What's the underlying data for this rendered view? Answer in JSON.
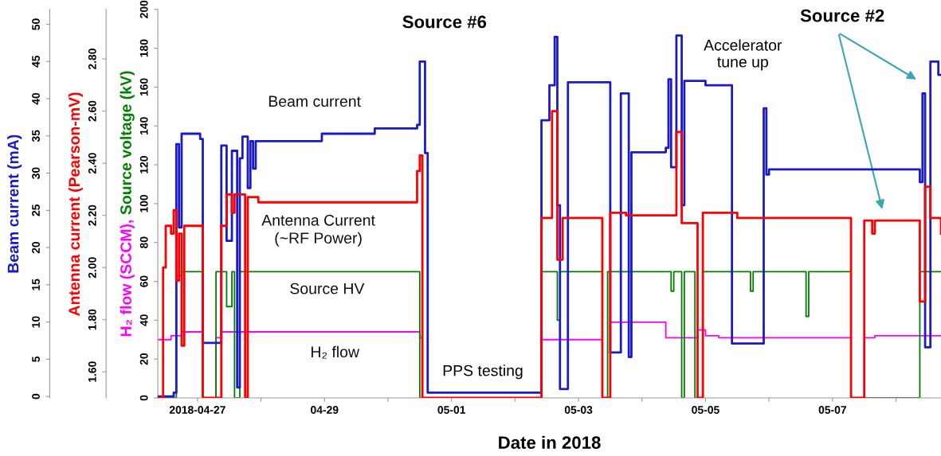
{
  "chart_data": {
    "type": "step",
    "xlabel": "Date in 2018",
    "ylabel": "H₂ flow (SCCM), Source voltage (kV)",
    "y3label": "Antenna current (Pearson-mV)",
    "y2label": "Beam current (mA)",
    "xlim": [
      "2018-04-26T09:00",
      "2018-05-08T17:00"
    ],
    "xticks": [
      {
        "value": "2018-04-27",
        "label": "2018-04-27"
      },
      {
        "value": "2018-04-28",
        "label": null
      },
      {
        "value": "2018-04-29",
        "label": "04-29"
      },
      {
        "value": "2018-04-30",
        "label": null
      },
      {
        "value": "2018-05-01",
        "label": "05-01"
      },
      {
        "value": "2018-05-02",
        "label": null
      },
      {
        "value": "2018-05-03",
        "label": "05-03"
      },
      {
        "value": "2018-05-04",
        "label": null
      },
      {
        "value": "2018-05-05",
        "label": "05-05"
      },
      {
        "value": "2018-05-06",
        "label": null
      },
      {
        "value": "2018-05-07",
        "label": "05-07"
      },
      {
        "value": "2018-05-08",
        "label": null
      }
    ],
    "ylim": [
      0,
      200
    ],
    "yticks": [
      0,
      20,
      40,
      60,
      80,
      100,
      120,
      140,
      160,
      180,
      200
    ],
    "y3lim": [
      1.5,
      2.99
    ],
    "y3ticks": [
      {
        "value": 1.6,
        "label": "1.60"
      },
      {
        "value": 1.8,
        "label": "1.80"
      },
      {
        "value": 2.0,
        "label": "2.00"
      },
      {
        "value": 2.2,
        "label": "2.20"
      },
      {
        "value": 2.4,
        "label": "2.40"
      },
      {
        "value": 2.6,
        "label": "2.60"
      },
      {
        "value": 2.8,
        "label": "2.80"
      }
    ],
    "y2lim": [
      -0.2,
      52
    ],
    "y2ticks": [
      0,
      5,
      10,
      15,
      20,
      25,
      30,
      35,
      40,
      45,
      50
    ],
    "annotations": [
      "Source #6",
      "Source #2",
      "Accelerator\ntune up",
      "PPS testing"
    ],
    "series": [
      {
        "name": "Beam current",
        "color": "#1a1ac8",
        "axis": "y2",
        "x": [
          "2018-04-26T09:00",
          "2018-04-26T15:00",
          "2018-04-26T16:00",
          "2018-04-26T17:00",
          "2018-04-26T18:00",
          "2018-04-27T01:00",
          "2018-04-27T02:00",
          "2018-04-27T09:00",
          "2018-04-27T11:00",
          "2018-04-27T13:00",
          "2018-04-27T15:00",
          "2018-04-27T16:00",
          "2018-04-27T17:00",
          "2018-04-27T19:00",
          "2018-04-27T20:00",
          "2018-04-27T21:00",
          "2018-04-27T22:00",
          "2018-04-28T23:00",
          "2018-04-29T19:00",
          "2018-04-30T11:00",
          "2018-04-30T12:00",
          "2018-04-30T14:00",
          "2018-04-30T15:00",
          "2018-05-02T10:00",
          "2018-05-02T13:00",
          "2018-05-02T15:00",
          "2018-05-02T16:00",
          "2018-05-02T17:00",
          "2018-05-02T20:00",
          "2018-05-03T12:00",
          "2018-05-03T16:00",
          "2018-05-03T19:00",
          "2018-05-03T20:00",
          "2018-05-04T09:00",
          "2018-05-04T10:00",
          "2018-05-04T11:00",
          "2018-05-04T13:00",
          "2018-05-04T15:00",
          "2018-05-04T16:00",
          "2018-05-05T00:00",
          "2018-05-05T10:00",
          "2018-05-05T22:00",
          "2018-05-05T23:00",
          "2018-05-06T00:00",
          "2018-05-08T09:00",
          "2018-05-08T10:00",
          "2018-05-08T11:00",
          "2018-05-08T13:00",
          "2018-05-08T16:00",
          "2018-05-08T17:00"
        ],
        "values": [
          0,
          0.5,
          33.9,
          22.7,
          35.3,
          34.6,
          7.2,
          33.7,
          20.9,
          33.0,
          1.2,
          32.0,
          34.9,
          28.0,
          34.3,
          30.6,
          34.3,
          35.3,
          36.0,
          36.5,
          45.0,
          32.7,
          0.5,
          37.1,
          41.8,
          48.3,
          25.7,
          1.0,
          42.2,
          5.9,
          40.7,
          5.3,
          32.8,
          33.4,
          42.6,
          30.8,
          48.5,
          25.7,
          42.4,
          41.8,
          7.1,
          38.7,
          29.8,
          30.5,
          28.8,
          40.7,
          6.6,
          45.0,
          43.2,
          43.2
        ]
      },
      {
        "name": "Antenna Current\n(~RF Power)",
        "color": "#ff0000",
        "axis": "y3",
        "x": [
          "2018-04-26T09:00",
          "2018-04-26T11:00",
          "2018-04-26T12:00",
          "2018-04-26T14:00",
          "2018-04-26T15:00",
          "2018-04-26T16:00",
          "2018-04-26T17:00",
          "2018-04-26T18:00",
          "2018-04-26T19:00",
          "2018-04-27T02:00",
          "2018-04-27T09:00",
          "2018-04-27T11:00",
          "2018-04-27T13:00",
          "2018-04-27T14:00",
          "2018-04-27T18:00",
          "2018-04-27T19:00",
          "2018-04-27T23:00",
          "2018-04-30T11:00",
          "2018-04-30T12:00",
          "2018-04-30T13:00",
          "2018-05-02T10:00",
          "2018-05-02T14:00",
          "2018-05-02T16:00",
          "2018-05-02T18:00",
          "2018-05-03T09:00",
          "2018-05-03T12:00",
          "2018-05-03T18:00",
          "2018-05-04T13:00",
          "2018-05-04T15:00",
          "2018-05-04T21:00",
          "2018-05-04T23:00",
          "2018-05-05T12:00",
          "2018-05-07T07:00",
          "2018-05-07T12:00",
          "2018-05-07T15:00",
          "2018-05-07T16:00",
          "2018-05-08T09:00",
          "2018-05-08T11:00",
          "2018-05-08T13:00",
          "2018-05-08T17:00"
        ],
        "values": [
          1.5,
          2.0,
          2.16,
          2.13,
          2.22,
          1.95,
          2.13,
          1.7,
          2.16,
          1.5,
          2.16,
          2.28,
          2.21,
          2.28,
          1.5,
          2.27,
          2.25,
          2.37,
          2.43,
          1.5,
          2.19,
          2.6,
          2.03,
          2.19,
          1.5,
          2.21,
          2.2,
          2.52,
          2.17,
          1.5,
          2.21,
          2.19,
          1.5,
          2.18,
          2.13,
          2.18,
          1.87,
          2.31,
          2.19,
          2.13
        ]
      },
      {
        "name": "H₂ flow",
        "color": "#ff00ff",
        "axis": "y",
        "x": [
          "2018-04-26T09:00",
          "2018-04-26T14:00",
          "2018-04-26T18:00",
          "2018-04-27T02:00",
          "2018-04-27T07:00",
          "2018-04-27T09:00",
          "2018-04-30T12:00",
          "2018-04-30T13:00",
          "2018-05-02T10:00",
          "2018-05-03T09:00",
          "2018-05-03T12:00",
          "2018-05-04T09:00",
          "2018-05-04T21:00",
          "2018-05-05T00:00",
          "2018-05-05T05:00",
          "2018-05-07T07:00",
          "2018-05-07T12:00",
          "2018-05-07T16:00",
          "2018-05-08T17:00"
        ],
        "values": [
          30,
          32,
          34,
          0,
          31,
          34,
          31,
          0,
          30,
          0,
          39,
          31,
          35,
          32,
          31,
          0,
          31,
          32,
          32
        ]
      },
      {
        "name": "Source HV",
        "color": "#008000",
        "axis": "y",
        "x": [
          "2018-04-26T09:00",
          "2018-04-26T16:00",
          "2018-04-26T18:00",
          "2018-04-27T02:00",
          "2018-04-27T07:00",
          "2018-04-27T11:00",
          "2018-04-27T13:00",
          "2018-04-27T14:00",
          "2018-04-27T16:00",
          "2018-04-30T12:00",
          "2018-05-02T10:00",
          "2018-05-02T16:00",
          "2018-05-02T17:00",
          "2018-05-03T09:00",
          "2018-05-03T11:00",
          "2018-05-04T11:00",
          "2018-05-04T12:00",
          "2018-05-04T15:00",
          "2018-05-04T16:00",
          "2018-05-04T20:00",
          "2018-05-04T23:00",
          "2018-05-05T17:00",
          "2018-05-05T18:00",
          "2018-05-06T14:00",
          "2018-05-06T15:00",
          "2018-05-07T07:00",
          "2018-05-08T09:00",
          "2018-05-08T17:00"
        ],
        "values": [
          0,
          63,
          65,
          0,
          65,
          47,
          65,
          0,
          65,
          0,
          65,
          40,
          65,
          0,
          65,
          55,
          65,
          0,
          65,
          0,
          65,
          55,
          65,
          42,
          65,
          0,
          65,
          65
        ]
      }
    ]
  }
}
